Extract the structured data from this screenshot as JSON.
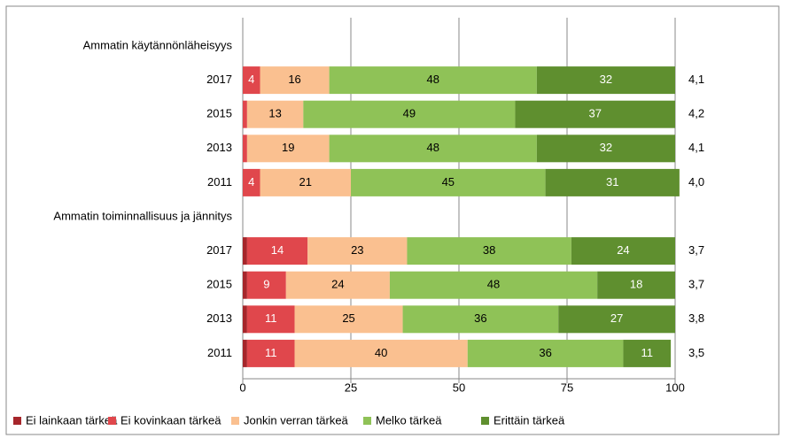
{
  "chart_data": {
    "type": "stacked_bar_horizontal",
    "categories": [
      "Ammatin käytännönläheisyys",
      "2017",
      "2015",
      "2013",
      "2011",
      "Ammatin toiminnallisuus ja jännitys",
      "2017",
      "2015",
      "2013",
      "2011"
    ],
    "series": [
      {
        "name": "Ei lainkaan tärkeä",
        "color": "#a6262b",
        "label_color": "#ffffff",
        "values": [
          null,
          0,
          0,
          0,
          0,
          null,
          1,
          1,
          1,
          1
        ]
      },
      {
        "name": "Ei kovinkaan tärkeä",
        "color": "#e0474c",
        "label_color": "#ffffff",
        "values": [
          null,
          4,
          1,
          1,
          4,
          null,
          14,
          9,
          11,
          11
        ]
      },
      {
        "name": "Jonkin verran tärkeä",
        "color": "#fac090",
        "label_color": "#000000",
        "values": [
          null,
          16,
          13,
          19,
          21,
          null,
          23,
          24,
          25,
          40
        ]
      },
      {
        "name": "Melko tärkeä",
        "color": "#8fc257",
        "label_color": "#000000",
        "values": [
          null,
          48,
          49,
          48,
          45,
          null,
          38,
          48,
          36,
          36
        ]
      },
      {
        "name": "Erittäin tärkeä",
        "color": "#5f8f2f",
        "label_color": "#ffffff",
        "values": [
          null,
          32,
          37,
          32,
          31,
          null,
          24,
          18,
          27,
          11
        ]
      }
    ],
    "mean_labels": [
      null,
      "4,1",
      "4,2",
      "4,1",
      "4,0",
      null,
      "3,7",
      "3,7",
      "3,8",
      "3,5"
    ],
    "xlim": [
      0,
      100
    ],
    "xticks": [
      0,
      25,
      50,
      75,
      100
    ],
    "grid": true,
    "legend": "bottom"
  }
}
